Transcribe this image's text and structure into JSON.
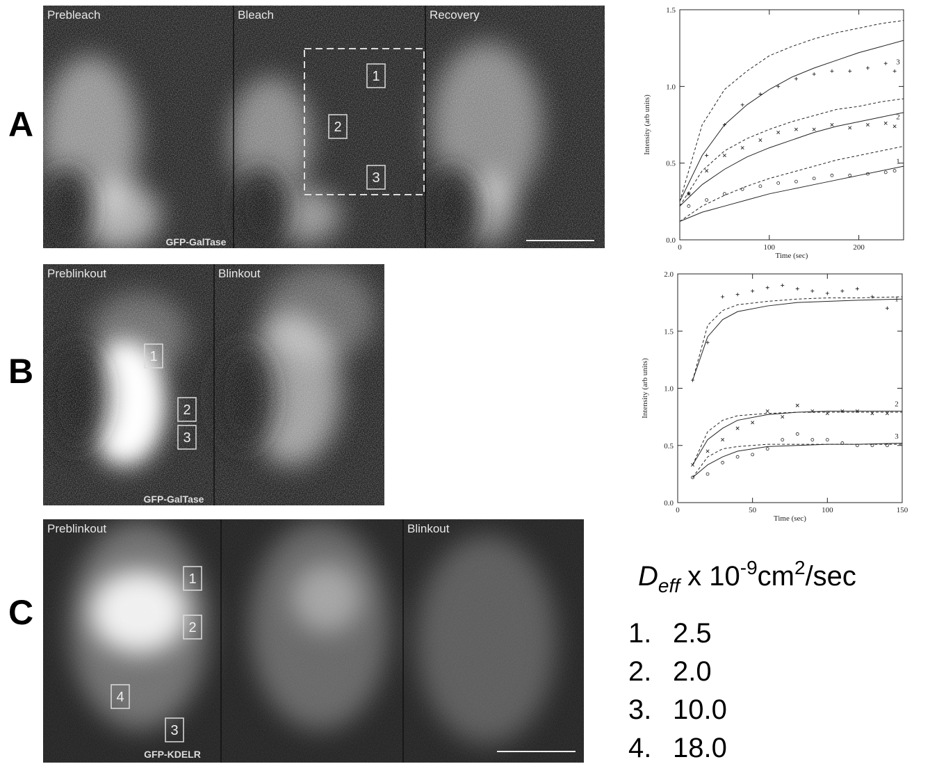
{
  "panels": [
    {
      "letter": "A",
      "frame_labels": [
        "Prebleach",
        "Bleach",
        "Recovery"
      ],
      "stain": "GFP-GalTase",
      "boxes": [
        "1",
        "2",
        "3"
      ]
    },
    {
      "letter": "B",
      "frame_labels": [
        "Preblinkout",
        "Blinkout"
      ],
      "stain": "GFP-GalTase",
      "boxes": [
        "1",
        "2",
        "3"
      ]
    },
    {
      "letter": "C",
      "frame_labels": [
        "Preblinkout",
        null,
        "Blinkout"
      ],
      "stain": "GFP-KDELR",
      "boxes": [
        "1",
        "2",
        "4",
        "3"
      ]
    }
  ],
  "deff": {
    "symbol": "D",
    "subscript": "eff",
    "multiplier": " x 10",
    "exponent": "-9",
    "unit": "cm",
    "unit_exponent": "2",
    "unit_tail": "/sec",
    "items": [
      {
        "index": "1.",
        "value": "2.5"
      },
      {
        "index": "2.",
        "value": "2.0"
      },
      {
        "index": "3.",
        "value": "10.0"
      },
      {
        "index": "4.",
        "value": "18.0"
      }
    ]
  },
  "chart_data": [
    {
      "type": "scatter",
      "x_label": "Time (sec)",
      "y_label": "Intensity (arb units)",
      "xlim": [
        0,
        250
      ],
      "ylim": [
        0,
        1.5
      ],
      "xticks": [
        0,
        100,
        200
      ],
      "yticks": [
        {
          "value": 0,
          "label": "0.0"
        },
        0.5,
        {
          "value": 1,
          "label": "1.0"
        },
        1.5
      ],
      "x": [
        10,
        30,
        50,
        70,
        90,
        110,
        130,
        150,
        170,
        190,
        210,
        230,
        240
      ],
      "series": [
        {
          "name": "3",
          "marker": "+",
          "values": [
            0.3,
            0.55,
            0.75,
            0.88,
            0.95,
            1.0,
            1.05,
            1.08,
            1.1,
            1.1,
            1.12,
            1.15,
            1.1
          ]
        },
        {
          "name": "2",
          "marker": "x",
          "values": [
            0.3,
            0.45,
            0.55,
            0.6,
            0.65,
            0.7,
            0.72,
            0.72,
            0.75,
            0.73,
            0.75,
            0.76,
            0.74
          ]
        },
        {
          "name": "1",
          "marker": "o",
          "values": [
            0.22,
            0.26,
            0.3,
            0.33,
            0.35,
            0.37,
            0.38,
            0.4,
            0.42,
            0.42,
            0.43,
            0.44,
            0.45
          ]
        }
      ],
      "curves": [
        {
          "dash": false,
          "x": [
            0,
            25,
            50,
            75,
            100,
            125,
            150,
            175,
            200,
            225,
            250
          ],
          "values": [
            0.25,
            0.55,
            0.75,
            0.88,
            0.98,
            1.06,
            1.12,
            1.17,
            1.22,
            1.26,
            1.3
          ]
        },
        {
          "dash": true,
          "x": [
            0,
            25,
            50,
            75,
            100,
            125,
            150,
            175,
            200,
            225,
            250
          ],
          "values": [
            0.25,
            0.75,
            0.98,
            1.1,
            1.2,
            1.26,
            1.31,
            1.35,
            1.38,
            1.41,
            1.43
          ]
        },
        {
          "dash": false,
          "x": [
            0,
            25,
            50,
            75,
            100,
            125,
            150,
            175,
            200,
            225,
            250
          ],
          "values": [
            0.22,
            0.36,
            0.46,
            0.54,
            0.6,
            0.65,
            0.7,
            0.74,
            0.77,
            0.8,
            0.83
          ]
        },
        {
          "dash": true,
          "x": [
            0,
            25,
            50,
            75,
            100,
            125,
            150,
            175,
            200,
            225,
            250
          ],
          "values": [
            0.22,
            0.45,
            0.58,
            0.66,
            0.72,
            0.77,
            0.81,
            0.85,
            0.87,
            0.9,
            0.92
          ]
        },
        {
          "dash": false,
          "x": [
            0,
            25,
            50,
            75,
            100,
            125,
            150,
            175,
            200,
            225,
            250
          ],
          "values": [
            0.12,
            0.18,
            0.22,
            0.26,
            0.3,
            0.33,
            0.36,
            0.39,
            0.42,
            0.45,
            0.48
          ]
        },
        {
          "dash": true,
          "x": [
            0,
            25,
            50,
            75,
            100,
            125,
            150,
            175,
            200,
            225,
            250
          ],
          "values": [
            0.12,
            0.22,
            0.29,
            0.35,
            0.4,
            0.44,
            0.48,
            0.52,
            0.55,
            0.58,
            0.61
          ]
        }
      ]
    },
    {
      "type": "scatter",
      "x_label": "Time (sec)",
      "y_label": "Intensity (arb units)",
      "xlim": [
        0,
        150
      ],
      "ylim": [
        0,
        2
      ],
      "xticks": [
        0,
        50,
        100,
        150
      ],
      "yticks": [
        {
          "value": 0,
          "label": "0.0"
        },
        0.5,
        {
          "value": 1,
          "label": "1.0"
        },
        1.5,
        {
          "value": 2,
          "label": "2.0"
        }
      ],
      "x": [
        10,
        20,
        30,
        40,
        50,
        60,
        70,
        80,
        90,
        100,
        110,
        120,
        130,
        140
      ],
      "series": [
        {
          "name": "1",
          "marker": "+",
          "values": [
            1.07,
            1.4,
            1.8,
            1.82,
            1.85,
            1.88,
            1.9,
            1.87,
            1.85,
            1.83,
            1.85,
            1.87,
            1.8,
            1.7
          ]
        },
        {
          "name": "2",
          "marker": "x",
          "values": [
            0.33,
            0.45,
            0.55,
            0.65,
            0.7,
            0.8,
            0.75,
            0.85,
            0.8,
            0.78,
            0.8,
            0.8,
            0.78,
            0.78
          ]
        },
        {
          "name": "3",
          "marker": "o",
          "values": [
            0.22,
            0.25,
            0.35,
            0.4,
            0.42,
            0.47,
            0.55,
            0.6,
            0.55,
            0.55,
            0.52,
            0.5,
            0.5,
            0.5
          ]
        }
      ],
      "curves": [
        {
          "dash": false,
          "x": [
            10,
            20,
            30,
            40,
            60,
            80,
            100,
            120,
            150
          ],
          "values": [
            1.07,
            1.45,
            1.6,
            1.67,
            1.72,
            1.75,
            1.76,
            1.77,
            1.78
          ]
        },
        {
          "dash": true,
          "x": [
            10,
            20,
            30,
            40,
            60,
            80,
            100,
            120,
            150
          ],
          "values": [
            1.07,
            1.55,
            1.68,
            1.73,
            1.76,
            1.78,
            1.79,
            1.79,
            1.8
          ]
        },
        {
          "dash": false,
          "x": [
            10,
            20,
            30,
            40,
            60,
            80,
            100,
            120,
            150
          ],
          "values": [
            0.33,
            0.55,
            0.65,
            0.72,
            0.77,
            0.79,
            0.8,
            0.8,
            0.8
          ]
        },
        {
          "dash": true,
          "x": [
            10,
            20,
            30,
            40,
            60,
            80,
            100,
            120,
            150
          ],
          "values": [
            0.33,
            0.62,
            0.72,
            0.76,
            0.78,
            0.79,
            0.79,
            0.79,
            0.79
          ]
        },
        {
          "dash": false,
          "x": [
            10,
            20,
            30,
            40,
            60,
            80,
            100,
            120,
            150
          ],
          "values": [
            0.22,
            0.33,
            0.4,
            0.45,
            0.49,
            0.5,
            0.51,
            0.51,
            0.52
          ]
        },
        {
          "dash": true,
          "x": [
            10,
            20,
            30,
            40,
            60,
            80,
            100,
            120,
            150
          ],
          "values": [
            0.22,
            0.4,
            0.47,
            0.49,
            0.51,
            0.51,
            0.51,
            0.51,
            0.51
          ]
        }
      ]
    }
  ]
}
